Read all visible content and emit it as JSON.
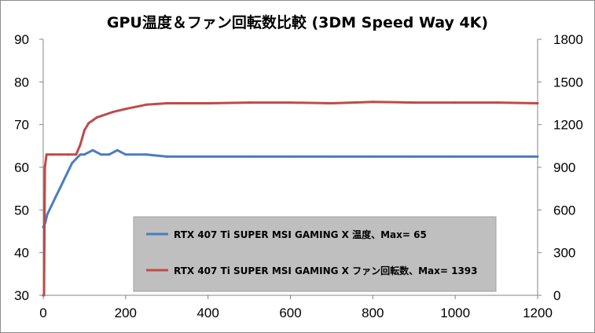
{
  "chart_data": {
    "type": "line",
    "title": "GPU温度＆ファン回転数比較 (3DM Speed Way 4K)",
    "xlabel": "",
    "ylabel": "",
    "xlim": [
      0,
      1200
    ],
    "ylim_left": [
      30,
      90
    ],
    "ylim_right": [
      0,
      1800
    ],
    "x_ticks": [
      "0",
      "200",
      "400",
      "600",
      "800",
      "1000",
      "1200"
    ],
    "y_left_ticks": [
      "30",
      "40",
      "50",
      "60",
      "70",
      "80",
      "90"
    ],
    "y_right_ticks": [
      "0",
      "300",
      "600",
      "900",
      "1200",
      "1500",
      "1800"
    ],
    "legend_placement": "center",
    "grid": false,
    "series": [
      {
        "name": "RTX 407 Ti SUPER MSI GAMING X 温度、Max= 65",
        "axis": "left",
        "color": "#4a7ebb",
        "points": [
          [
            0,
            46
          ],
          [
            5,
            47
          ],
          [
            10,
            49
          ],
          [
            20,
            51
          ],
          [
            30,
            53
          ],
          [
            40,
            55
          ],
          [
            50,
            57
          ],
          [
            60,
            59
          ],
          [
            70,
            61
          ],
          [
            80,
            62
          ],
          [
            90,
            63
          ],
          [
            100,
            63
          ],
          [
            120,
            64
          ],
          [
            140,
            63
          ],
          [
            160,
            63
          ],
          [
            180,
            64
          ],
          [
            200,
            63
          ],
          [
            250,
            63
          ],
          [
            300,
            62.5
          ],
          [
            400,
            62.5
          ],
          [
            500,
            62.5
          ],
          [
            600,
            62.5
          ],
          [
            700,
            62.5
          ],
          [
            800,
            62.5
          ],
          [
            900,
            62.5
          ],
          [
            1000,
            62.5
          ],
          [
            1100,
            62.5
          ],
          [
            1200,
            62.5
          ]
        ]
      },
      {
        "name": "RTX 407 Ti SUPER MSI GAMING X ファン回転数、Max= 1393",
        "axis": "right",
        "color": "#be4b48",
        "points": [
          [
            0,
            0
          ],
          [
            2,
            0
          ],
          [
            4,
            900
          ],
          [
            8,
            990
          ],
          [
            20,
            990
          ],
          [
            40,
            990
          ],
          [
            60,
            990
          ],
          [
            80,
            990
          ],
          [
            90,
            1060
          ],
          [
            100,
            1160
          ],
          [
            110,
            1210
          ],
          [
            130,
            1250
          ],
          [
            150,
            1270
          ],
          [
            170,
            1290
          ],
          [
            200,
            1310
          ],
          [
            250,
            1340
          ],
          [
            300,
            1350
          ],
          [
            400,
            1350
          ],
          [
            500,
            1355
          ],
          [
            600,
            1355
          ],
          [
            700,
            1350
          ],
          [
            800,
            1360
          ],
          [
            900,
            1355
          ],
          [
            1000,
            1355
          ],
          [
            1100,
            1355
          ],
          [
            1200,
            1350
          ]
        ]
      }
    ]
  }
}
